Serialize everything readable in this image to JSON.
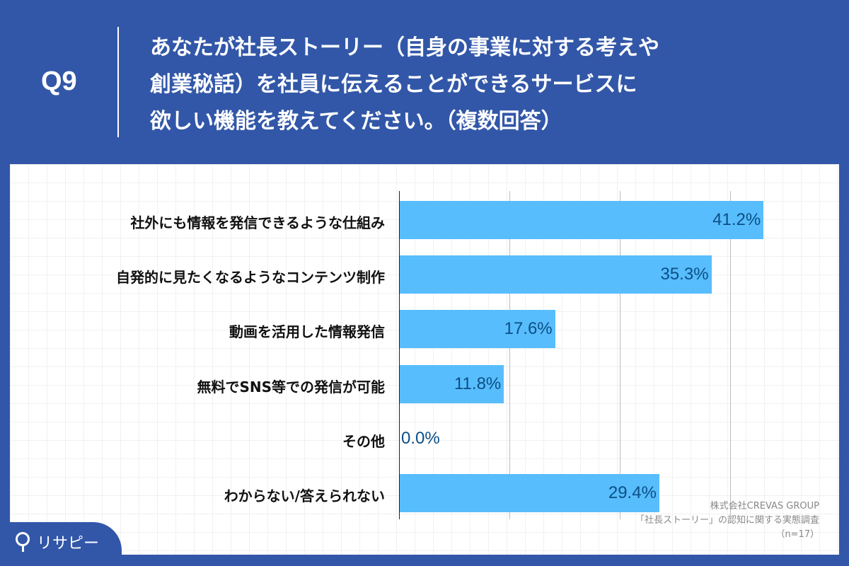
{
  "question": {
    "number": "Q9",
    "lines": [
      "あなたが社長ストーリー（自身の事業に対する考えや",
      "創業秘話）を社員に伝えることができるサービスに",
      "欲しい機能を教えてください。（複数回答）"
    ]
  },
  "chart_data": {
    "type": "bar",
    "orientation": "horizontal",
    "title": "あなたが社長ストーリー（自身の事業に対する考えや創業秘話）を社員に伝えることができるサービスに欲しい機能を教えてください。（複数回答）",
    "categories": [
      "社外にも情報を発信できるような仕組み",
      "自発的に見たくなるようなコンテンツ制作",
      "動画を活用した情報発信",
      "無料でSNS等での発信が可能",
      "その他",
      "わからない/答えられない"
    ],
    "values": [
      41.2,
      35.3,
      17.6,
      11.8,
      0.0,
      29.4
    ],
    "labels": [
      "41.2%",
      "35.3%",
      "17.6%",
      "11.8%",
      "0.0%",
      "29.4%"
    ],
    "xlim": [
      0,
      50
    ],
    "grid": true,
    "unit": "%",
    "bar_color": "#58bdfc",
    "label_color": "#0b4f86"
  },
  "source": {
    "line1": "株式会社CREVAS GROUP",
    "line2": "「社長ストーリー」の認知に関する実態調査",
    "line3": "（n=17）"
  },
  "logo": {
    "text": "リサピー"
  }
}
